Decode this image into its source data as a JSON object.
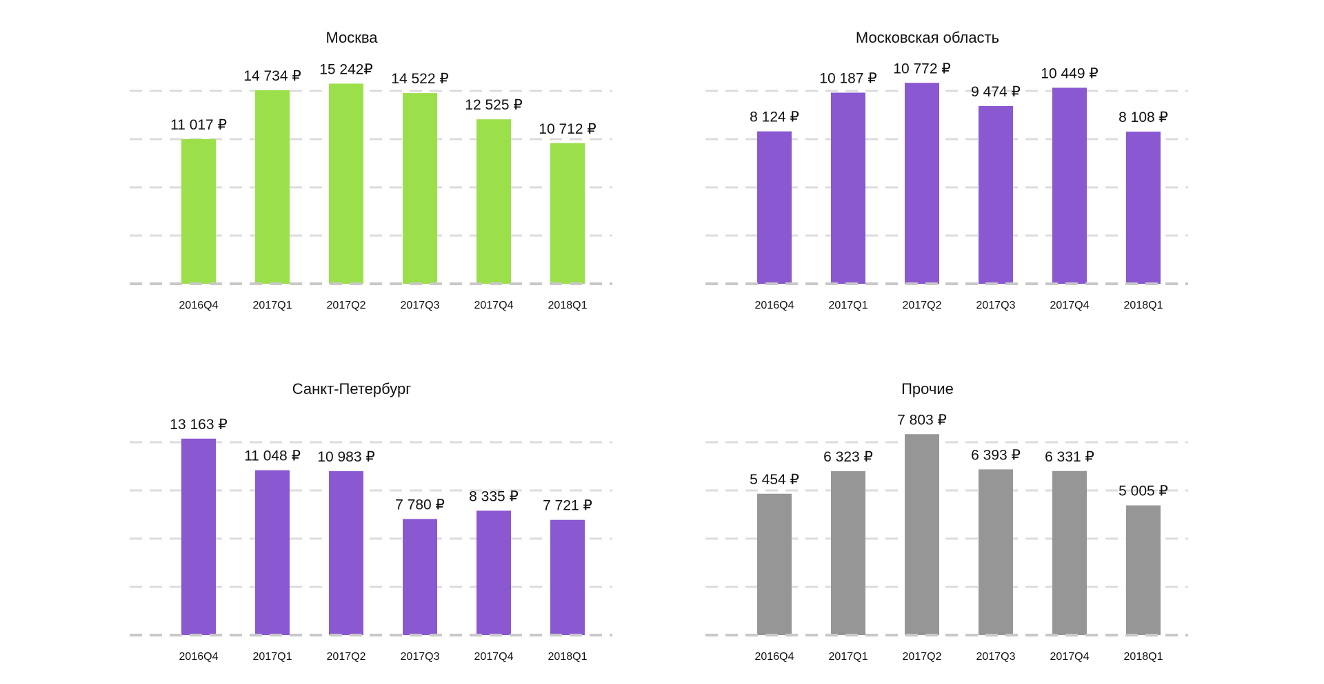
{
  "chart_data": [
    {
      "type": "bar",
      "title": "Москва",
      "categories": [
        "2016Q4",
        "2017Q1",
        "2017Q2",
        "2017Q3",
        "2017Q4",
        "2018Q1"
      ],
      "values": [
        11017,
        14734,
        15242,
        14522,
        12525,
        10712
      ],
      "labels": [
        "11 017 ₽",
        "14 734 ₽",
        "15 242₽",
        "14 522 ₽",
        "12 525 ₽",
        "10 712 ₽"
      ],
      "color": "#9be04a",
      "ylim": [
        0,
        15000
      ],
      "grid": true,
      "xlabel": "",
      "ylabel": ""
    },
    {
      "type": "bar",
      "title": "Московская область",
      "categories": [
        "2016Q4",
        "2017Q1",
        "2017Q2",
        "2017Q3",
        "2017Q4",
        "2018Q1"
      ],
      "values": [
        8124,
        10187,
        10772,
        9474,
        10449,
        8108
      ],
      "labels": [
        "8 124 ₽",
        "10 187 ₽",
        "10 772 ₽",
        "9 474 ₽",
        "10 449 ₽",
        "8 108 ₽"
      ],
      "color": "#8a58d0",
      "ylim": [
        0,
        10500
      ],
      "grid": true,
      "xlabel": "",
      "ylabel": ""
    },
    {
      "type": "bar",
      "title": "Санкт-Петербург",
      "categories": [
        "2016Q4",
        "2017Q1",
        "2017Q2",
        "2017Q3",
        "2017Q4",
        "2018Q1"
      ],
      "values": [
        13163,
        11048,
        10983,
        7780,
        8335,
        7721
      ],
      "labels": [
        "13 163 ₽",
        "11 048 ₽",
        "10 983 ₽",
        "7 780 ₽",
        "8 335 ₽",
        "7 721 ₽"
      ],
      "color": "#8a58d0",
      "ylim": [
        0,
        13200
      ],
      "grid": true,
      "xlabel": "",
      "ylabel": ""
    },
    {
      "type": "bar",
      "title": "Прочие",
      "categories": [
        "2016Q4",
        "2017Q1",
        "2017Q2",
        "2017Q3",
        "2017Q4",
        "2018Q1"
      ],
      "values": [
        5454,
        6323,
        7803,
        6393,
        6331,
        5005
      ],
      "labels": [
        "5 454 ₽",
        "6 323 ₽",
        "7 803 ₽",
        "6 393 ₽",
        "6 331 ₽",
        "5 005 ₽"
      ],
      "color": "#969696",
      "ylim": [
        0,
        7600
      ],
      "grid": true,
      "xlabel": "",
      "ylabel": ""
    }
  ]
}
